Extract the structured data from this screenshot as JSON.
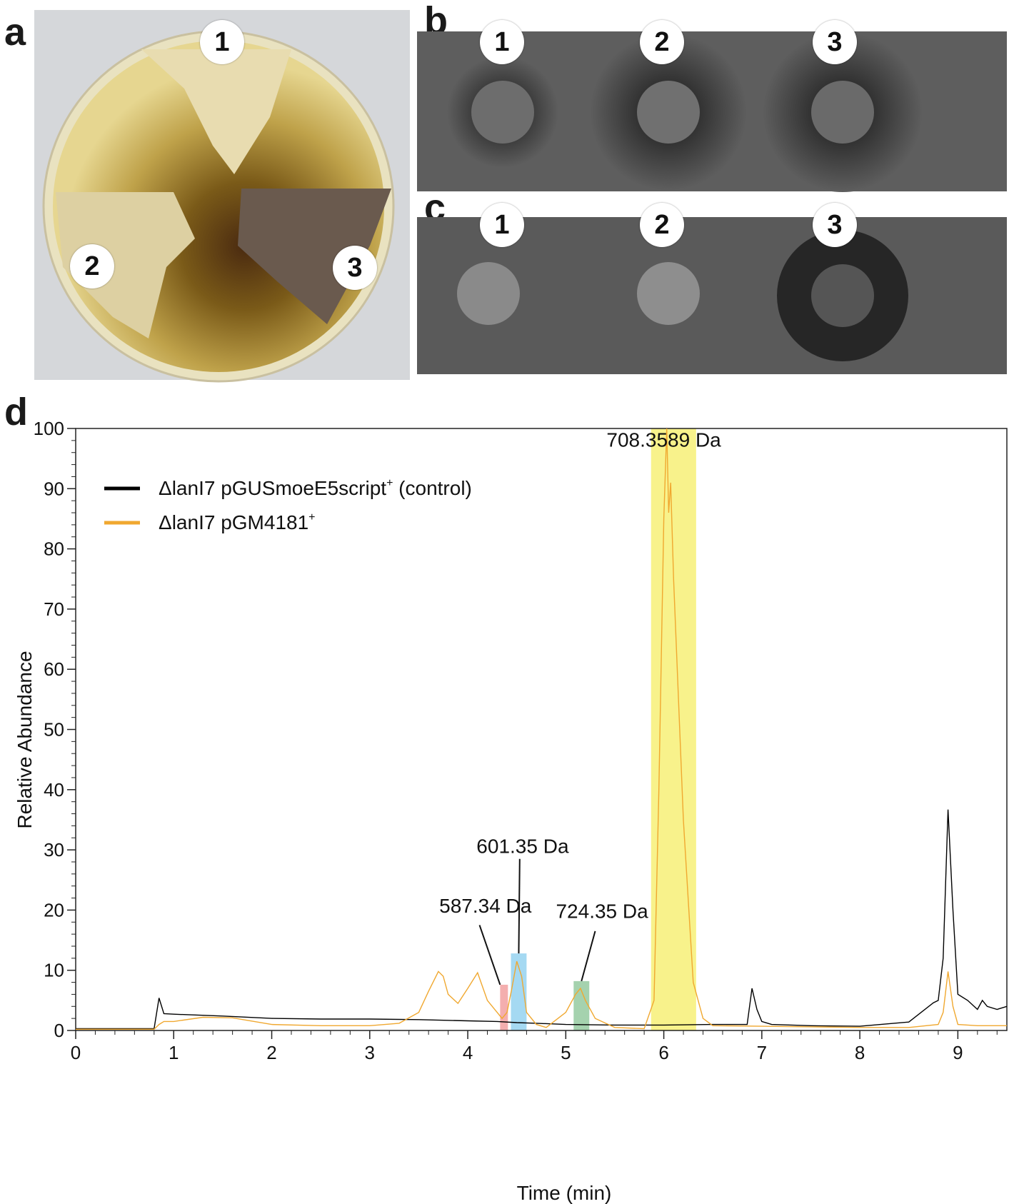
{
  "panels": {
    "a": {
      "letter": "a",
      "labels": [
        "1",
        "2",
        "3"
      ]
    },
    "b": {
      "letter": "b",
      "labels": [
        "1",
        "2",
        "3"
      ]
    },
    "c": {
      "letter": "c",
      "labels": [
        "1",
        "2",
        "3"
      ]
    },
    "d": {
      "letter": "d"
    }
  },
  "colors": {
    "control": "#000000",
    "pGM4181": "#f0a830",
    "highlight_708": "#f6ef6e",
    "highlight_587": "#f19a9a",
    "highlight_601": "#8fd0ef",
    "highlight_724": "#8fc79a"
  },
  "chart_data": {
    "type": "line",
    "xlabel": "Time (min)",
    "ylabel": "Relative Abundance",
    "xlim": [
      0,
      9.5
    ],
    "ylim": [
      0,
      100
    ],
    "xticks": [
      0,
      1,
      2,
      3,
      4,
      5,
      6,
      7,
      8,
      9
    ],
    "yticks": [
      0,
      10,
      20,
      30,
      40,
      50,
      60,
      70,
      80,
      90,
      100
    ],
    "legend": {
      "placement": "top-left",
      "entries": [
        {
          "name": "ΔlanI7 pGUSmoeE5script",
          "sup": "+",
          "suffix": " (control)",
          "series": "control"
        },
        {
          "name": "ΔlanI7 pGM4181",
          "sup": "+",
          "suffix": "",
          "series": "pGM4181"
        }
      ]
    },
    "series": [
      {
        "id": "control",
        "x": [
          0,
          0.8,
          0.85,
          0.9,
          1.0,
          1.5,
          2.0,
          2.5,
          3.0,
          3.5,
          4.0,
          4.3,
          4.5,
          4.7,
          5.0,
          5.5,
          6.0,
          6.5,
          6.85,
          6.9,
          6.95,
          7.0,
          7.1,
          7.5,
          8.0,
          8.5,
          8.75,
          8.8,
          8.85,
          8.9,
          8.95,
          9.0,
          9.1,
          9.2,
          9.25,
          9.3,
          9.4,
          9.5
        ],
        "values": [
          0.3,
          0.3,
          5.4,
          2.8,
          2.7,
          2.4,
          2.0,
          1.9,
          1.9,
          1.8,
          1.6,
          1.5,
          1.3,
          1.2,
          1.0,
          0.9,
          0.9,
          1.0,
          1.0,
          7.0,
          3.5,
          1.5,
          1.0,
          0.8,
          0.7,
          1.4,
          4.6,
          5.0,
          12.0,
          36.7,
          20.0,
          6.0,
          5.0,
          3.5,
          5.0,
          4.0,
          3.5,
          4.0
        ]
      },
      {
        "id": "pGM4181",
        "x": [
          0,
          0.8,
          0.85,
          0.9,
          1.0,
          1.3,
          1.6,
          2.0,
          2.5,
          3.0,
          3.3,
          3.5,
          3.6,
          3.7,
          3.75,
          3.8,
          3.9,
          4.0,
          4.1,
          4.2,
          4.3,
          4.35,
          4.4,
          4.45,
          4.5,
          4.55,
          4.6,
          4.7,
          4.8,
          5.0,
          5.1,
          5.15,
          5.2,
          5.3,
          5.5,
          5.8,
          5.9,
          5.95,
          6.0,
          6.03,
          6.05,
          6.07,
          6.1,
          6.2,
          6.3,
          6.4,
          6.5,
          7.0,
          7.5,
          8.0,
          8.5,
          8.8,
          8.85,
          8.9,
          8.95,
          9.0,
          9.2,
          9.5
        ],
        "values": [
          0.2,
          0.2,
          1.0,
          1.5,
          1.5,
          2.2,
          2.1,
          1.0,
          0.8,
          0.8,
          1.2,
          3.0,
          6.5,
          9.8,
          9.0,
          6.0,
          4.5,
          7.0,
          9.6,
          5.0,
          3.0,
          2.0,
          3.0,
          7.0,
          11.5,
          9.0,
          3.0,
          1.0,
          0.5,
          3.0,
          6.0,
          7.0,
          5.0,
          2.0,
          0.5,
          0.3,
          5.0,
          40.0,
          85.0,
          100.0,
          86.0,
          91.0,
          75.0,
          35.0,
          8.0,
          2.0,
          0.8,
          0.7,
          0.6,
          0.5,
          0.5,
          1.0,
          3.0,
          9.8,
          4.0,
          1.0,
          0.8,
          0.8
        ]
      }
    ],
    "highlights": [
      {
        "x0": 5.87,
        "x1": 6.33,
        "y": 100,
        "color": "highlight_708"
      },
      {
        "x0": 4.33,
        "x1": 4.41,
        "y": 7.6,
        "color": "highlight_587"
      },
      {
        "x0": 4.44,
        "x1": 4.6,
        "y": 12.8,
        "color": "highlight_601"
      },
      {
        "x0": 5.08,
        "x1": 5.24,
        "y": 8.2,
        "color": "highlight_724"
      }
    ],
    "annotations": [
      {
        "text": "708.3589 Da",
        "x": 6.0,
        "y": 97,
        "line": false
      },
      {
        "text": "601.35 Da",
        "x": 4.56,
        "y": 29.5,
        "line": true,
        "lx": 4.52,
        "ly": 12.8,
        "tx": 4.53,
        "ty": 28.5
      },
      {
        "text": "587.34 Da",
        "x": 4.18,
        "y": 19.6,
        "line": true,
        "lx": 4.33,
        "ly": 7.6,
        "tx": 4.12,
        "ty": 17.5
      },
      {
        "text": "724.35 Da",
        "x": 5.37,
        "y": 18.7,
        "line": true,
        "lx": 5.16,
        "ly": 8.2,
        "tx": 5.3,
        "ty": 16.5
      }
    ]
  }
}
